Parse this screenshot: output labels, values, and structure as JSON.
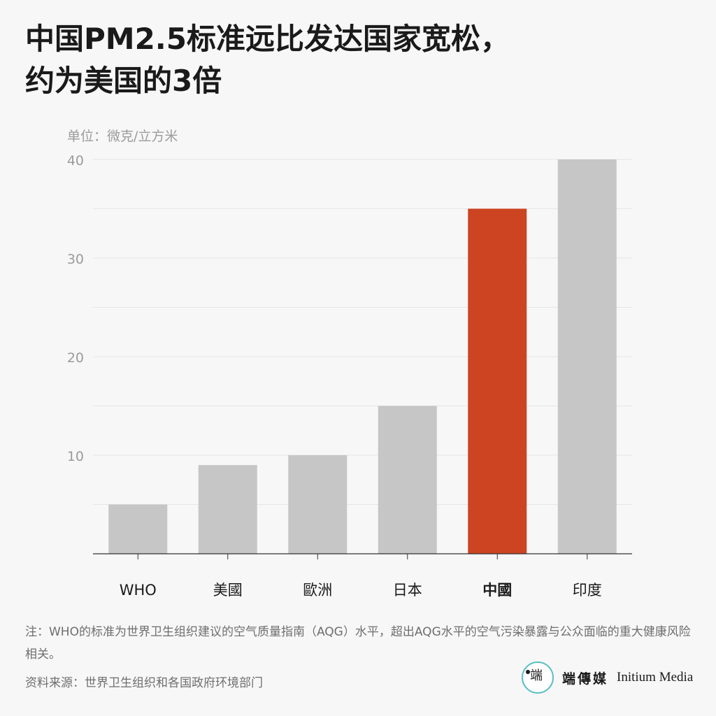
{
  "title_line1": "中国PM2.5标准远比发达国家宽松，",
  "title_line2": "约为美国的3倍",
  "unit_label": "单位：微克/立方米",
  "colors": {
    "bar_default": "#c6c6c6",
    "bar_highlight": "#cc4422",
    "gridline": "#e6e6e6",
    "axis": "#333333",
    "tick_text": "#9b9b9b",
    "category_text": "#1a1a1a"
  },
  "chart_data": {
    "type": "bar",
    "categories": [
      "WHO",
      "美國",
      "歐洲",
      "日本",
      "中國",
      "印度"
    ],
    "values": [
      5,
      9,
      10,
      15,
      35,
      40
    ],
    "highlight": "中國",
    "yticks": [
      10,
      20,
      30,
      40
    ],
    "ylim": [
      0,
      40
    ],
    "grid": true
  },
  "note": "注：WHO的标准为世界卫生组织建议的空气质量指南（AQG）水平，超出AQG水平的空气污染暴露与公众面临的重大健康风险相关。",
  "source": "资料来源：世界卫生组织和各国政府环境部门",
  "brand": {
    "logo_icon": "initium-logo-icon",
    "logo_mark": "端",
    "name_cn": "端傳媒",
    "name_en": "Initium Media"
  }
}
